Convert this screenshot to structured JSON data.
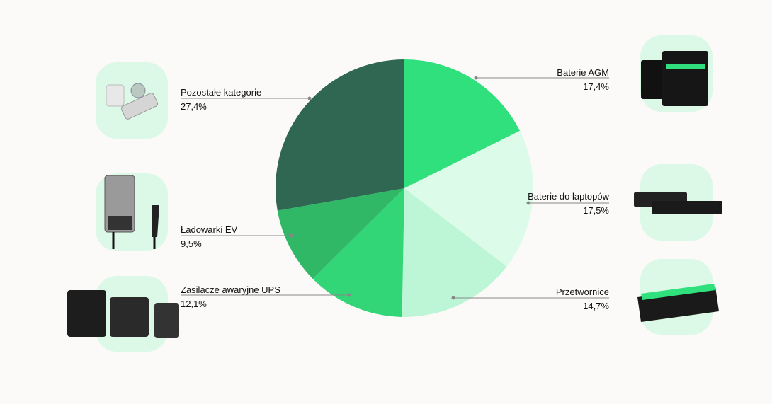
{
  "chart_data": {
    "type": "pie",
    "categories": [
      "Baterie AGM",
      "Baterie do laptopów",
      "Przetwornice",
      "Zasilacze awaryjne UPS",
      "Ładowarki EV",
      "Pozostałe kategorie"
    ],
    "values": [
      17.4,
      17.5,
      14.7,
      12.1,
      9.5,
      27.4
    ],
    "value_labels": [
      "17,4%",
      "17,5%",
      "14,7%",
      "12,1%",
      "9,5%",
      "27,4%"
    ],
    "colors": [
      "#2fe07c",
      "#ddfbe9",
      "#bdf6d6",
      "#33d676",
      "#30b866",
      "#2f6752"
    ]
  }
}
